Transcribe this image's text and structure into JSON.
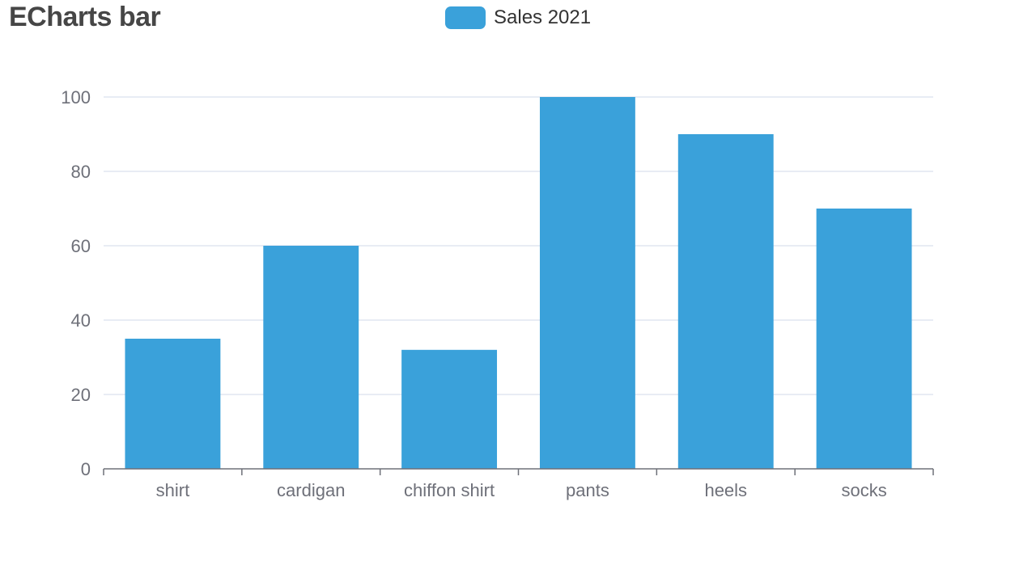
{
  "chart_data": {
    "type": "bar",
    "title": "ECharts bar",
    "xlabel": "",
    "ylabel": "",
    "categories": [
      "shirt",
      "cardigan",
      "chiffon shirt",
      "pants",
      "heels",
      "socks"
    ],
    "series": [
      {
        "name": "Sales 2021",
        "values": [
          35,
          60,
          32,
          100,
          90,
          70
        ]
      }
    ],
    "ylim": [
      0,
      100
    ],
    "yticks": [
      0,
      20,
      40,
      60,
      80,
      100
    ],
    "grid": true,
    "legend": "top-center",
    "colors": {
      "bar": "#3aa1da",
      "axis": "#6e7079",
      "grid": "#e0e6f1"
    }
  }
}
